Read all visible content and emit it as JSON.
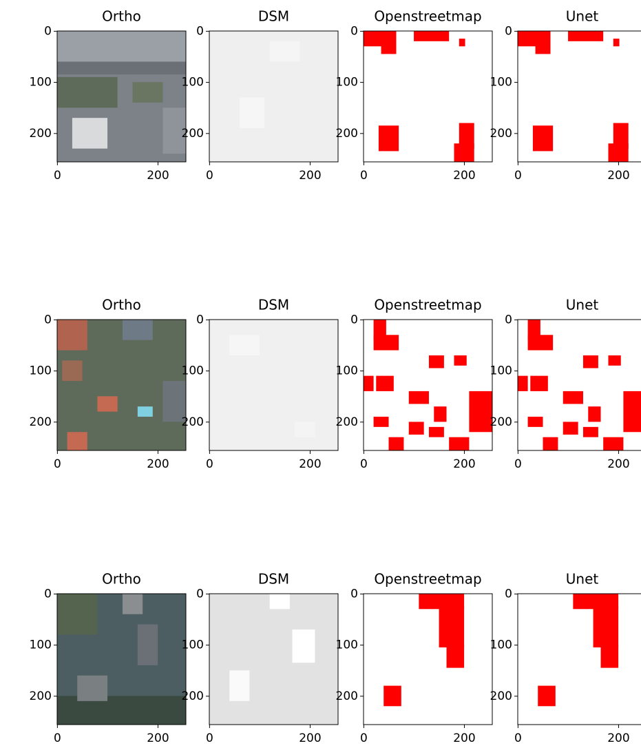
{
  "chart_data": [
    {
      "type": "image",
      "title": "Ortho",
      "xlim": [
        -0.5,
        255.5
      ],
      "ylim": [
        255.5,
        -0.5
      ],
      "xticks": [
        0,
        200
      ],
      "yticks": [
        0,
        100,
        200
      ]
    },
    {
      "type": "image",
      "title": "DSM",
      "xlim": [
        -0.5,
        255.5
      ],
      "ylim": [
        255.5,
        -0.5
      ],
      "xticks": [
        0,
        200
      ],
      "yticks": [
        0,
        100,
        200
      ]
    },
    {
      "type": "image",
      "title": "Openstreetmap",
      "xlim": [
        -0.5,
        255.5
      ],
      "ylim": [
        255.5,
        -0.5
      ],
      "xticks": [
        0,
        200
      ],
      "yticks": [
        0,
        100,
        200
      ]
    },
    {
      "type": "image",
      "title": "Unet",
      "xlim": [
        -0.5,
        255.5
      ],
      "ylim": [
        255.5,
        -0.5
      ],
      "xticks": [
        0,
        200
      ],
      "yticks": [
        0,
        100,
        200
      ]
    },
    {
      "type": "image",
      "title": "Ortho",
      "xlim": [
        -0.5,
        255.5
      ],
      "ylim": [
        255.5,
        -0.5
      ],
      "xticks": [
        0,
        200
      ],
      "yticks": [
        0,
        100,
        200
      ]
    },
    {
      "type": "image",
      "title": "DSM",
      "xlim": [
        -0.5,
        255.5
      ],
      "ylim": [
        255.5,
        -0.5
      ],
      "xticks": [
        0,
        200
      ],
      "yticks": [
        0,
        100,
        200
      ]
    },
    {
      "type": "image",
      "title": "Openstreetmap",
      "xlim": [
        -0.5,
        255.5
      ],
      "ylim": [
        255.5,
        -0.5
      ],
      "xticks": [
        0,
        200
      ],
      "yticks": [
        0,
        100,
        200
      ]
    },
    {
      "type": "image",
      "title": "Unet",
      "xlim": [
        -0.5,
        255.5
      ],
      "ylim": [
        255.5,
        -0.5
      ],
      "xticks": [
        0,
        200
      ],
      "yticks": [
        0,
        100,
        200
      ]
    },
    {
      "type": "image",
      "title": "Ortho",
      "xlim": [
        -0.5,
        255.5
      ],
      "ylim": [
        255.5,
        -0.5
      ],
      "xticks": [
        0,
        200
      ],
      "yticks": [
        0,
        100,
        200
      ]
    },
    {
      "type": "image",
      "title": "DSM",
      "xlim": [
        -0.5,
        255.5
      ],
      "ylim": [
        255.5,
        -0.5
      ],
      "xticks": [
        0,
        200
      ],
      "yticks": [
        0,
        100,
        200
      ]
    },
    {
      "type": "image",
      "title": "Openstreetmap",
      "xlim": [
        -0.5,
        255.5
      ],
      "ylim": [
        255.5,
        -0.5
      ],
      "xticks": [
        0,
        200
      ],
      "yticks": [
        0,
        100,
        200
      ]
    },
    {
      "type": "image",
      "title": "Unet",
      "xlim": [
        -0.5,
        255.5
      ],
      "ylim": [
        255.5,
        -0.5
      ],
      "xticks": [
        0,
        200
      ],
      "yticks": [
        0,
        100,
        200
      ]
    }
  ]
}
